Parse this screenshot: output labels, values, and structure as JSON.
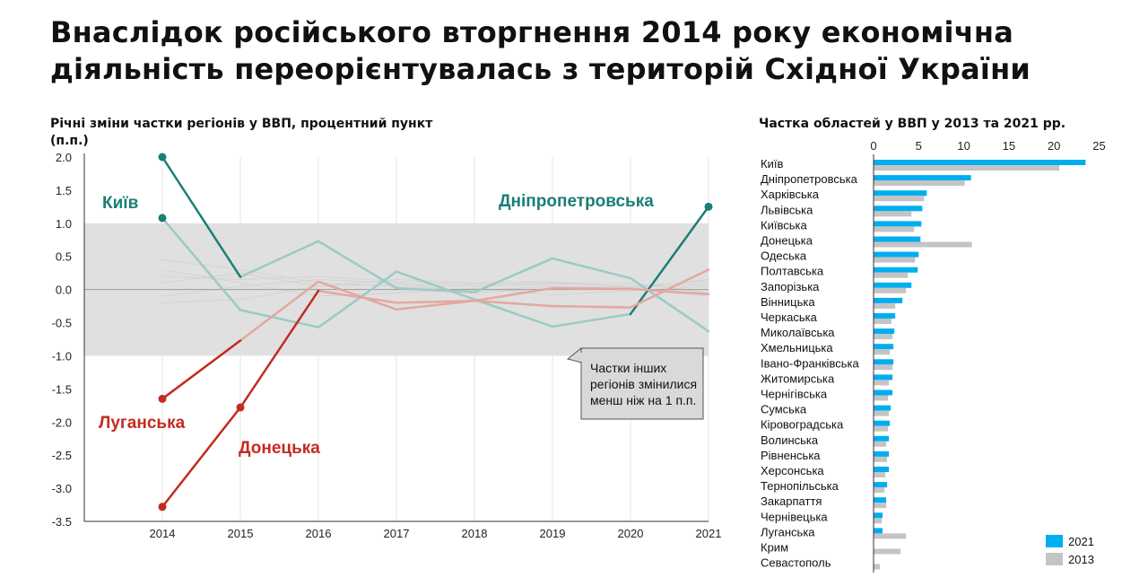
{
  "title_lines": [
    "Внаслідок російського вторгнення 2014 року економічна",
    "діяльність переорієнтувалась з територій Східної України"
  ],
  "colors": {
    "kyiv": "#1a7f74",
    "luhansk": "#c42b1f",
    "faded_teal": "#9ccac4",
    "faded_red": "#e5a7a0",
    "band": "#e0e0e0",
    "bar_2021": "#00aeef",
    "bar_2013": "#c4c4c4"
  },
  "chart_data": [
    {
      "type": "line",
      "title": "Річні зміни частки регіонів у ВВП, процентний пункт (п.п.)",
      "x": [
        2014,
        2015,
        2016,
        2017,
        2018,
        2019,
        2020,
        2021
      ],
      "ylim": [
        -3.5,
        2.0
      ],
      "yticks": [
        "2.0",
        "1.5",
        "1.0",
        "0.5",
        "0.0",
        "-0.5",
        "-1.0",
        "-1.5",
        "-2.0",
        "-2.5",
        "-3.0",
        "-3.5"
      ],
      "xticks": [
        "2014",
        "2015",
        "2016",
        "2017",
        "2018",
        "2019",
        "2020",
        "2021"
      ],
      "band": [
        -1.0,
        1.0
      ],
      "annotation": "Частки інших регіонів змінилися менш ніж на 1 п.п.",
      "series": [
        {
          "name": "Київ",
          "values": [
            2.0,
            0.19,
            0.73,
            0.02,
            -0.04,
            0.47,
            0.17,
            -0.63
          ],
          "color": "kyiv"
        },
        {
          "name": "Дніпропетровська",
          "values": [
            1.08,
            -0.31,
            -0.57,
            0.27,
            -0.15,
            -0.56,
            -0.37,
            1.25
          ],
          "color": "kyiv"
        },
        {
          "name": "Луганська",
          "values": [
            -1.65,
            -0.77,
            0.12,
            -0.3,
            -0.17,
            -0.25,
            -0.27,
            0.3
          ],
          "color": "luhansk"
        },
        {
          "name": "Донецька",
          "values": [
            -3.28,
            -1.78,
            -0.02,
            -0.2,
            -0.17,
            0.02,
            0.01,
            -0.07
          ],
          "color": "luhansk"
        }
      ],
      "labels": [
        {
          "text": "Київ",
          "color": "kyiv"
        },
        {
          "text": "Дніпропетровська",
          "color": "kyiv"
        },
        {
          "text": "Луганська",
          "color": "luhansk"
        },
        {
          "text": "Донецька",
          "color": "luhansk"
        }
      ]
    },
    {
      "type": "bar",
      "title": "Частка областей у ВВП у 2013 та 2021 рр.",
      "xlim": [
        0,
        25
      ],
      "xticks": [
        "0",
        "5",
        "10",
        "15",
        "20",
        "25"
      ],
      "categories": [
        "Київ",
        "Дніпропетровська",
        "Харківська",
        "Львівська",
        "Київська",
        "Донецька",
        "Одеська",
        "Полтавська",
        "Запорізька",
        "Вінницька",
        "Черкаська",
        "Миколаївська",
        "Хмельницька",
        "Івано-Франківська",
        "Житомирська",
        "Чернігівська",
        "Сумська",
        "Кіровоградська",
        "Волинська",
        "Рівненська",
        "Херсонська",
        "Тернопільська",
        "Закарпаття",
        "Чернівецька",
        "Луганська",
        "Крим",
        "Севастополь"
      ],
      "series": [
        {
          "name": "2021",
          "values": [
            23.5,
            10.8,
            5.9,
            5.4,
            5.3,
            5.2,
            5.0,
            4.9,
            4.2,
            3.2,
            2.4,
            2.3,
            2.2,
            2.2,
            2.1,
            2.1,
            1.9,
            1.8,
            1.7,
            1.7,
            1.7,
            1.5,
            1.4,
            1.0,
            1.0,
            0,
            0
          ],
          "color": "bar_2021"
        },
        {
          "name": "2013",
          "values": [
            20.6,
            10.1,
            5.6,
            4.2,
            4.5,
            10.9,
            4.6,
            3.8,
            3.6,
            2.4,
            2.0,
            2.1,
            1.8,
            2.1,
            1.7,
            1.6,
            1.7,
            1.6,
            1.4,
            1.5,
            1.3,
            1.2,
            1.4,
            0.9,
            3.6,
            3.0,
            0.7
          ],
          "color": "bar_2013"
        }
      ],
      "legend": "bottom-right"
    }
  ]
}
